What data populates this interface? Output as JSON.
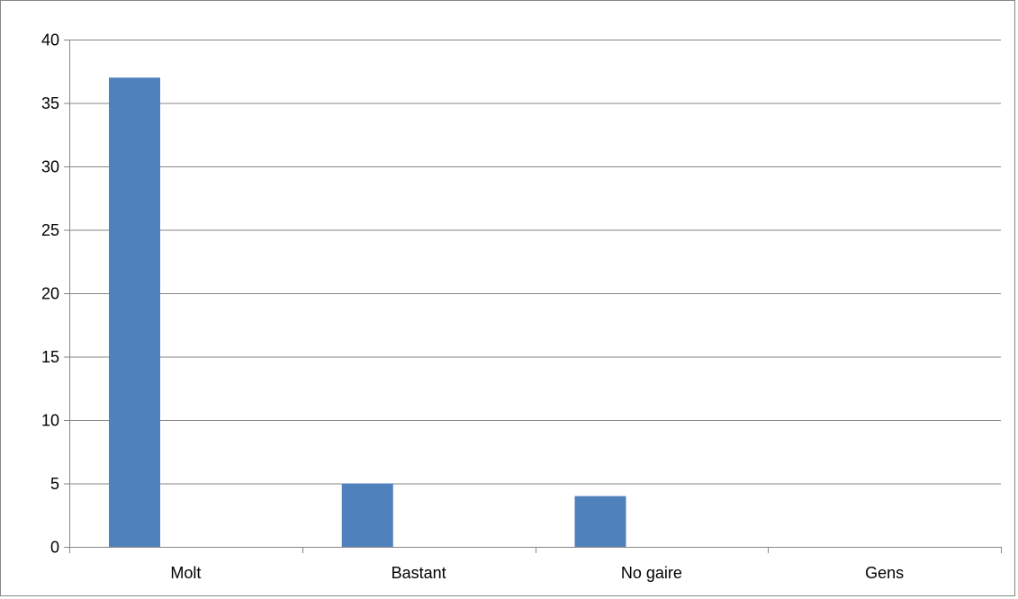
{
  "chart_data": {
    "type": "bar",
    "categories": [
      "Molt",
      "Bastant",
      "No gaire",
      "Gens"
    ],
    "values": [
      37,
      5,
      4,
      0
    ],
    "ylim": [
      0,
      40
    ],
    "yticks": [
      0,
      5,
      10,
      15,
      20,
      25,
      30,
      35,
      40
    ],
    "grid": true,
    "legend": "none",
    "colors": {
      "bar": "#4F81BD",
      "gridline": "#868686",
      "axis": "#868686",
      "border": "#868686"
    }
  }
}
